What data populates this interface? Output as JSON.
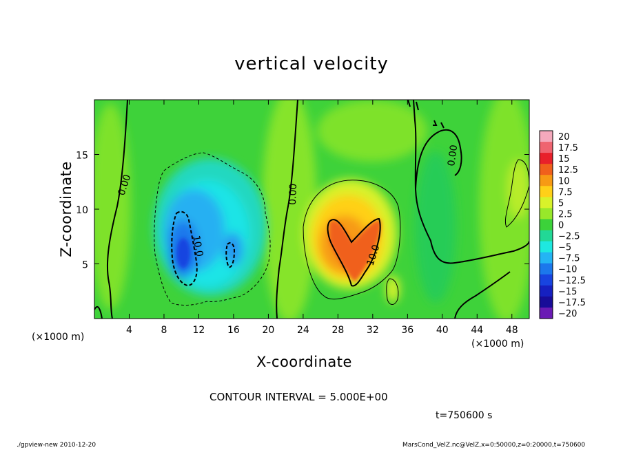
{
  "chart_data": {
    "type": "heatmap",
    "title": "vertical velocity",
    "xlabel": "X-coordinate",
    "ylabel": "Z-coordinate",
    "x_unit_left": "(×1000 m)",
    "x_unit_right": "(×1000 m)",
    "xlim": [
      0,
      50
    ],
    "ylim": [
      0,
      20
    ],
    "x_ticks": [
      "4",
      "8",
      "12",
      "16",
      "20",
      "24",
      "28",
      "32",
      "36",
      "40",
      "44",
      "48"
    ],
    "x_tick_values": [
      4,
      8,
      12,
      16,
      20,
      24,
      28,
      32,
      36,
      40,
      44,
      48
    ],
    "y_ticks": [
      "5",
      "10",
      "15"
    ],
    "y_tick_values": [
      5,
      10,
      15
    ],
    "colorbar": {
      "labels": [
        "20",
        "17.5",
        "15",
        "12.5",
        "10",
        "7.5",
        "5",
        "2.5",
        "0",
        "−2.5",
        "−5",
        "−7.5",
        "−10",
        "−12.5",
        "−15",
        "−17.5",
        "−20"
      ],
      "values": [
        20,
        17.5,
        15,
        12.5,
        10,
        7.5,
        5,
        2.5,
        0,
        -2.5,
        -5,
        -7.5,
        -10,
        -12.5,
        -15,
        -17.5,
        -20
      ],
      "colors": [
        "#f5a9bc",
        "#ef6470",
        "#e8202a",
        "#f0601c",
        "#f79a14",
        "#ffd018",
        "#d8f22a",
        "#98e82a",
        "#3cd23a",
        "#22d896",
        "#1ee8e0",
        "#24b4f4",
        "#1c78ec",
        "#1844e0",
        "#1620c0",
        "#180c98",
        "#6a1ab4"
      ]
    },
    "features": [
      {
        "kind": "updraft",
        "x": 30,
        "z": 7.5,
        "max": 12.5
      },
      {
        "kind": "downdraft",
        "x": 11,
        "z": 6,
        "min": -12.5
      }
    ],
    "contour_labels": [
      "0.00",
      "0.00",
      "0.00",
      "10.0",
      "10.0"
    ],
    "grid": false,
    "legend": "colorbar-right"
  },
  "annotations": {
    "contour_interval": "CONTOUR INTERVAL = 5.000E+00",
    "time": "t=750600 s",
    "footer_left": "./gpview-new  2010-12-20",
    "footer_right": "MarsCond_VelZ.nc@VelZ,x=0:50000,z=0:20000,t=750600"
  }
}
